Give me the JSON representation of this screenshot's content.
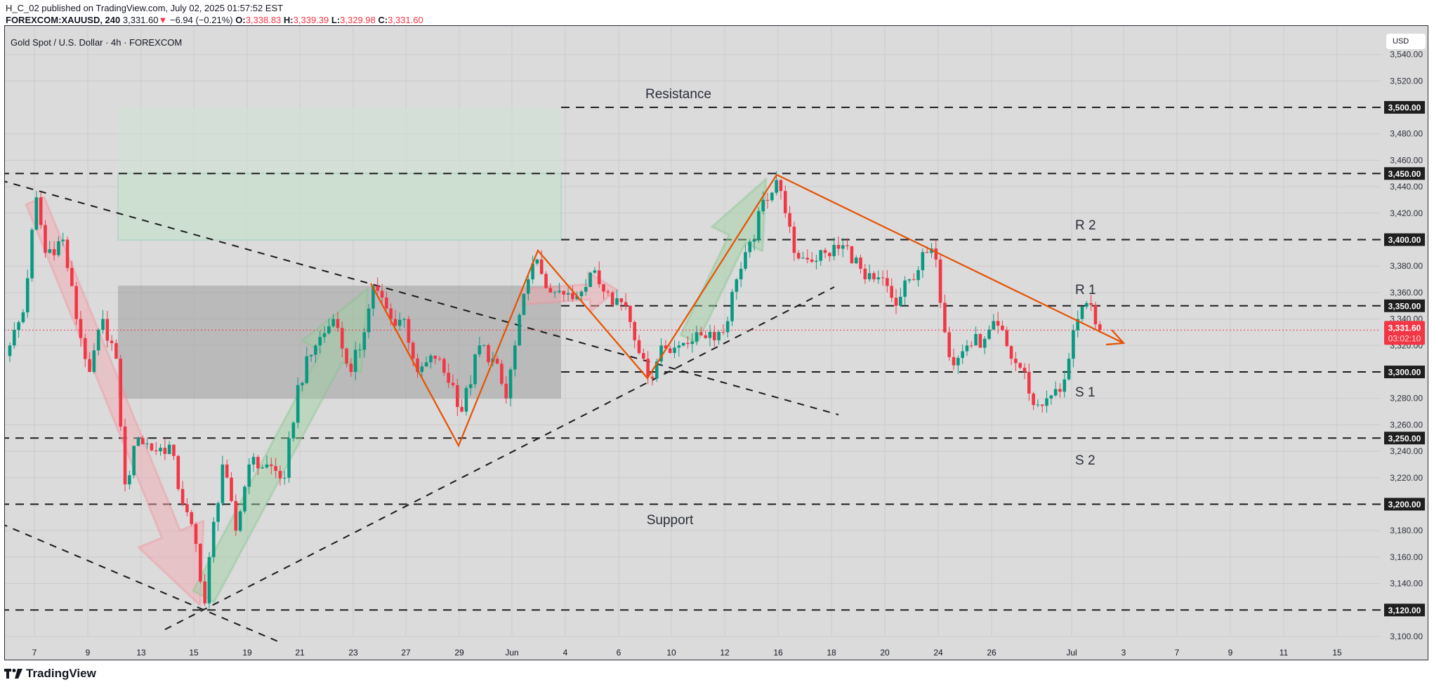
{
  "header": {
    "published_line": "H_C_02 published on TradingView.com, July 02, 2025 01:57:52 EST",
    "symbol": "FOREXCOM:XAUUSD, 240",
    "last": "3,331.60",
    "change": "−6.94 (−0.21%)",
    "o_label": "O:",
    "o": "3,338.83",
    "h_label": "H:",
    "h": "3,339.39",
    "l_label": "L:",
    "l": "3,329.98",
    "c_label": "C:",
    "c": "3,331.60"
  },
  "chart": {
    "title": "Gold Spot / U.S. Dollar · 4h · FOREXCOM",
    "currency_button": "USD",
    "current_price_label": "3,331.60",
    "countdown": "03:02:10",
    "colors": {
      "up": "#089981",
      "down": "#f23645",
      "bg": "#dbdbdb",
      "trend": "#e65100"
    }
  },
  "annotations": {
    "resistance": "Resistance",
    "support": "Support",
    "r2": "R 2",
    "r1": "R 1",
    "s1": "S 1",
    "s2": "S 2"
  },
  "footer": {
    "brand": "TradingView"
  },
  "chart_data": {
    "type": "candlestick",
    "title": "Gold Spot / U.S. Dollar · 4h · FOREXCOM",
    "timeframe": "4h",
    "ylim": [
      3090,
      3550
    ],
    "y_ticks": [
      3540,
      3520,
      3480,
      3460,
      3440,
      3420,
      3380,
      3360,
      3340,
      3320,
      3280,
      3260,
      3240,
      3220,
      3180,
      3160,
      3140,
      3100
    ],
    "y_tick_labels": [
      "3,540.00",
      "3,520.00",
      "3,480.00",
      "3,460.00",
      "3,440.00",
      "3,420.00",
      "3,380.00",
      "3,360.00",
      "3,340.00",
      "3,320.00",
      "3,280.00",
      "3,260.00",
      "3,240.00",
      "3,220.00",
      "3,180.00",
      "3,160.00",
      "3,140.00",
      "3,100.00"
    ],
    "levels": [
      {
        "price": 3500,
        "label": "3,500.00"
      },
      {
        "price": 3450,
        "label": "3,450.00"
      },
      {
        "price": 3400,
        "label": "3,400.00"
      },
      {
        "price": 3350,
        "label": "3,350.00"
      },
      {
        "price": 3300,
        "label": "3,300.00"
      },
      {
        "price": 3250,
        "label": "3,250.00"
      },
      {
        "price": 3200,
        "label": "3,200.00"
      },
      {
        "price": 3120,
        "label": "3,120.00"
      }
    ],
    "x_tick_labels": [
      "7",
      "9",
      "13",
      "15",
      "19",
      "21",
      "23",
      "27",
      "29",
      "Jun",
      "4",
      "6",
      "10",
      "12",
      "16",
      "18",
      "20",
      "24",
      "26",
      "Jul",
      "3",
      "7",
      "9",
      "11",
      "15"
    ],
    "bar_count": 247,
    "close_waypoints": [
      [
        0,
        3320
      ],
      [
        3,
        3345
      ],
      [
        6,
        3432
      ],
      [
        8,
        3390
      ],
      [
        12,
        3400
      ],
      [
        15,
        3340
      ],
      [
        18,
        3300
      ],
      [
        21,
        3340
      ],
      [
        24,
        3310
      ],
      [
        26,
        3215
      ],
      [
        29,
        3250
      ],
      [
        33,
        3240
      ],
      [
        36,
        3245
      ],
      [
        39,
        3200
      ],
      [
        42,
        3170
      ],
      [
        44,
        3125
      ],
      [
        45,
        3160
      ],
      [
        48,
        3230
      ],
      [
        51,
        3180
      ],
      [
        54,
        3230
      ],
      [
        58,
        3230
      ],
      [
        62,
        3220
      ],
      [
        65,
        3290
      ],
      [
        69,
        3320
      ],
      [
        73,
        3340
      ],
      [
        77,
        3300
      ],
      [
        80,
        3330
      ],
      [
        82,
        3365
      ],
      [
        86,
        3340
      ],
      [
        89,
        3340
      ],
      [
        92,
        3300
      ],
      [
        96,
        3310
      ],
      [
        100,
        3290
      ],
      [
        102,
        3270
      ],
      [
        106,
        3320
      ],
      [
        109,
        3310
      ],
      [
        112,
        3280
      ],
      [
        114,
        3320
      ],
      [
        117,
        3370
      ],
      [
        119,
        3385
      ],
      [
        122,
        3360
      ],
      [
        127,
        3355
      ],
      [
        131,
        3375
      ],
      [
        135,
        3360
      ],
      [
        139,
        3350
      ],
      [
        143,
        3310
      ],
      [
        145,
        3295
      ],
      [
        147,
        3320
      ],
      [
        151,
        3320
      ],
      [
        155,
        3330
      ],
      [
        161,
        3330
      ],
      [
        164,
        3370
      ],
      [
        168,
        3400
      ],
      [
        170,
        3430
      ],
      [
        173,
        3445
      ],
      [
        175,
        3420
      ],
      [
        177,
        3390
      ],
      [
        180,
        3385
      ],
      [
        184,
        3390
      ],
      [
        189,
        3395
      ],
      [
        193,
        3370
      ],
      [
        195,
        3370
      ],
      [
        198,
        3365
      ],
      [
        200,
        3350
      ],
      [
        203,
        3370
      ],
      [
        207,
        3390
      ],
      [
        209,
        3385
      ],
      [
        211,
        3330
      ],
      [
        213,
        3305
      ],
      [
        216,
        3320
      ],
      [
        220,
        3325
      ],
      [
        223,
        3335
      ],
      [
        226,
        3310
      ],
      [
        229,
        3300
      ],
      [
        231,
        3275
      ],
      [
        234,
        3280
      ],
      [
        237,
        3285
      ],
      [
        239,
        3310
      ],
      [
        241,
        3340
      ],
      [
        243,
        3352
      ],
      [
        245,
        3336
      ],
      [
        246,
        3331.6
      ]
    ],
    "last_close": 3331.6
  }
}
